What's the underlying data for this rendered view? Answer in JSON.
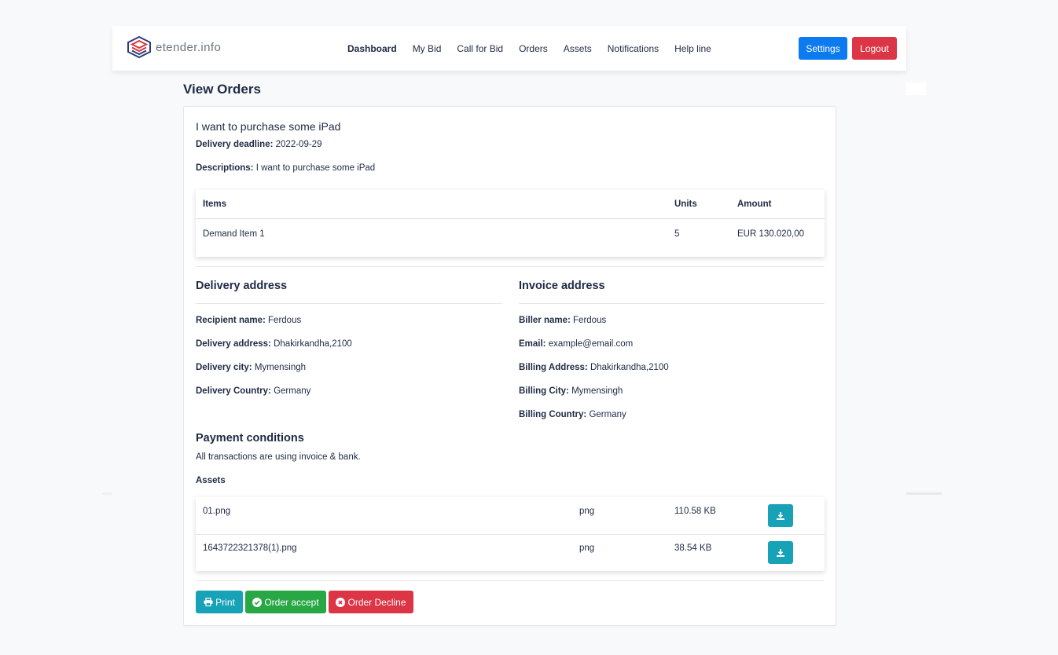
{
  "brand": {
    "name": "etender.info"
  },
  "nav": {
    "links": [
      "Dashboard",
      "My Bid",
      "Call for Bid",
      "Orders",
      "Assets",
      "Notifications",
      "Help line"
    ],
    "settings_label": "Settings",
    "logout_label": "Logout"
  },
  "page_title": "View Orders",
  "order": {
    "title": "I want to purchase some iPad",
    "deadline_label": "Delivery deadline:",
    "deadline_value": "2022-09-29",
    "descriptions_label": "Descriptions:",
    "descriptions_value": "I want to purchase some iPad"
  },
  "items_table": {
    "headers": [
      "Items",
      "Units",
      "Amount"
    ],
    "rows": [
      {
        "item": "Demand Item 1",
        "units": "5",
        "amount": "EUR 130.020,00"
      }
    ]
  },
  "delivery": {
    "heading": "Delivery address",
    "fields": [
      {
        "label": "Recipient name:",
        "value": "Ferdous"
      },
      {
        "label": "Delivery address:",
        "value": "Dhakirkandha,2100"
      },
      {
        "label": "Delivery city:",
        "value": "Mymensingh"
      },
      {
        "label": "Delivery Country:",
        "value": "Germany"
      }
    ]
  },
  "invoice": {
    "heading": "Invoice address",
    "fields": [
      {
        "label": "Biller name:",
        "value": "Ferdous"
      },
      {
        "label": "Email:",
        "value": "example@email.com"
      },
      {
        "label": "Billing Address:",
        "value": "Dhakirkandha,2100"
      },
      {
        "label": "Billing City:",
        "value": "Mymensingh"
      },
      {
        "label": "Billing Country:",
        "value": "Germany"
      }
    ]
  },
  "payment": {
    "heading": "Payment conditions",
    "text": "All transactions are using invoice & bank."
  },
  "assets": {
    "heading": "Assets",
    "rows": [
      {
        "name": "01.png",
        "type": "png",
        "size": "110.58 KB"
      },
      {
        "name": "1643722321378(1).png",
        "type": "png",
        "size": "38.54 KB"
      }
    ]
  },
  "actions": {
    "print_label": "Print",
    "accept_label": "Order accept",
    "decline_label": "Order Decline"
  },
  "colors": {
    "primary": "#0d7bf0",
    "danger": "#dc3545",
    "info": "#17a2b8",
    "success": "#28a745",
    "text": "#1e2a44"
  },
  "icons": [
    "logo-icon",
    "download-icon",
    "printer-icon",
    "check-circle-icon",
    "x-circle-icon"
  ]
}
